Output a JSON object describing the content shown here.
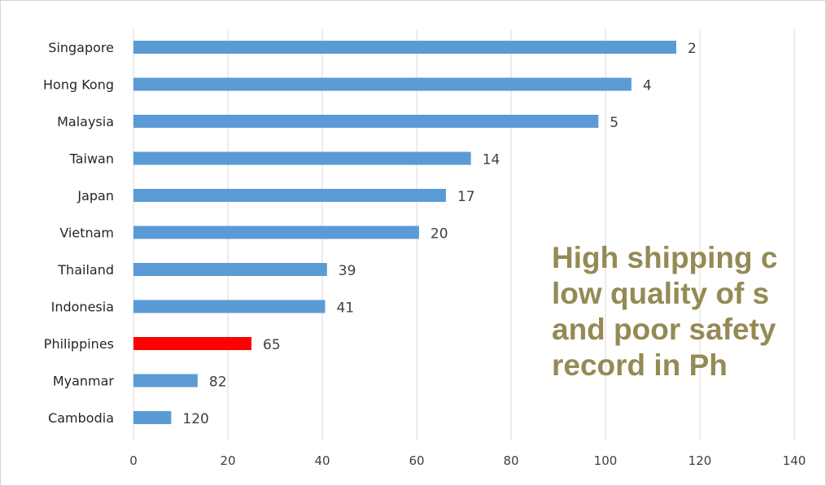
{
  "chart_data": {
    "type": "bar",
    "orientation": "horizontal",
    "categories": [
      "Singapore",
      "Hong Kong",
      "Malaysia",
      "Taiwan",
      "Japan",
      "Vietnam",
      "Thailand",
      "Indonesia",
      "Philippines",
      "Myanmar",
      "Cambodia"
    ],
    "values": [
      115,
      105.5,
      98.5,
      71.5,
      66.2,
      60.5,
      41,
      40.6,
      25,
      13.6,
      8
    ],
    "data_labels": [
      "2",
      "4",
      "5",
      "14",
      "17",
      "20",
      "39",
      "41",
      "65",
      "82",
      "120"
    ],
    "bar_colors": [
      "#5b9bd5",
      "#5b9bd5",
      "#5b9bd5",
      "#5b9bd5",
      "#5b9bd5",
      "#5b9bd5",
      "#5b9bd5",
      "#5b9bd5",
      "#ff0000",
      "#5b9bd5",
      "#5b9bd5"
    ],
    "xlim": [
      0,
      140
    ],
    "x_ticks": [
      "0",
      "20",
      "40",
      "60",
      "80",
      "100",
      "120",
      "140"
    ],
    "grid": "vertical",
    "title": "",
    "xlabel": "",
    "ylabel": ""
  },
  "overlay": {
    "lines": [
      "High shipping c",
      "low quality of s",
      "and poor safety",
      "record in Ph"
    ],
    "color": "#948a54"
  },
  "colors": {
    "bar": "#5b9bd5",
    "highlight": "#ff0000",
    "grid": "#d9d9d9"
  }
}
